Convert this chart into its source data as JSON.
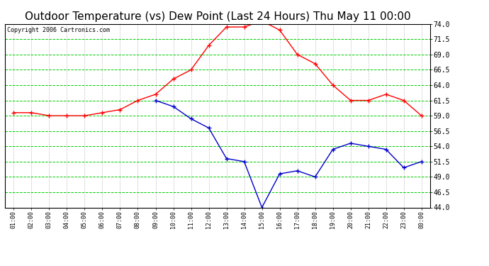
{
  "title": "Outdoor Temperature (vs) Dew Point (Last 24 Hours) Thu May 11 00:00",
  "copyright": "Copyright 2006 Cartronics.com",
  "x_labels": [
    "01:00",
    "02:00",
    "03:00",
    "04:00",
    "05:00",
    "06:00",
    "07:00",
    "08:00",
    "09:00",
    "10:00",
    "11:00",
    "12:00",
    "13:00",
    "14:00",
    "15:00",
    "16:00",
    "17:00",
    "18:00",
    "19:00",
    "20:00",
    "21:00",
    "22:00",
    "23:00",
    "00:00"
  ],
  "temp_values": [
    59.5,
    59.5,
    59.0,
    59.0,
    59.0,
    59.5,
    60.0,
    61.5,
    62.5,
    65.0,
    66.5,
    70.5,
    73.5,
    73.5,
    74.5,
    73.0,
    69.0,
    67.5,
    64.0,
    61.5,
    61.5,
    62.5,
    61.5,
    59.0
  ],
  "dew_values": [
    null,
    null,
    null,
    null,
    null,
    null,
    null,
    null,
    61.5,
    60.5,
    58.5,
    57.0,
    52.0,
    51.5,
    44.0,
    49.5,
    50.0,
    49.0,
    53.5,
    54.5,
    54.0,
    53.5,
    50.5,
    51.5
  ],
  "temp_color": "#ff0000",
  "dew_color": "#0000cc",
  "grid_h_color": "#00cc00",
  "grid_v_color": "#aaaaaa",
  "bg_color": "#ffffff",
  "ylim": [
    44.0,
    74.0
  ],
  "yticks": [
    44.0,
    46.5,
    49.0,
    51.5,
    54.0,
    56.5,
    59.0,
    61.5,
    64.0,
    66.5,
    69.0,
    71.5,
    74.0
  ],
  "title_fontsize": 11,
  "copyright_fontsize": 6,
  "tick_fontsize": 7,
  "xtick_fontsize": 6
}
